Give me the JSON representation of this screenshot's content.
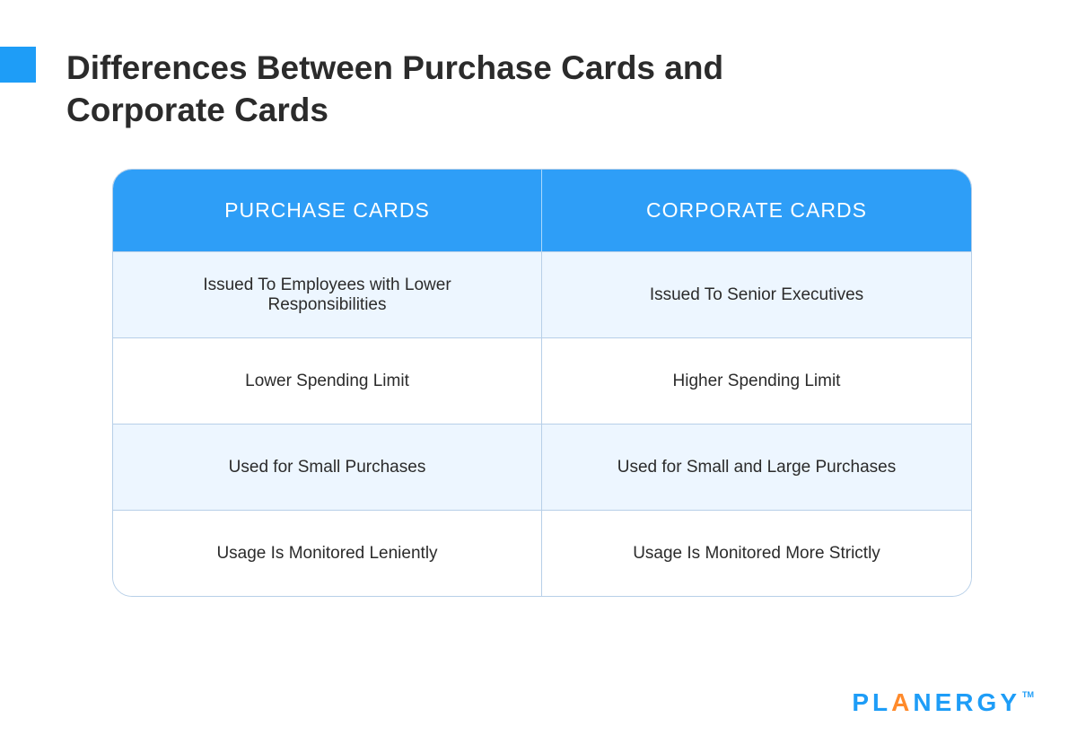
{
  "title": "Differences Between Purchase Cards and Corporate Cards",
  "accent_color": "#1e9df7",
  "table": {
    "header_bg": "#2e9ef7",
    "header_text_color": "#ffffff",
    "border_color": "#b7cfe8",
    "row_alt_bg": "#edf6ff",
    "row_bg": "#ffffff",
    "cell_text_color": "#2b2b2b",
    "columns": [
      "PURCHASE CARDS",
      "CORPORATE CARDS"
    ],
    "rows": [
      [
        "Issued To Employees with Lower Responsibilities",
        "Issued To Senior Executives"
      ],
      [
        "Lower Spending Limit",
        "Higher Spending Limit"
      ],
      [
        "Used for Small Purchases",
        "Used for Small and Large Purchases"
      ],
      [
        "Usage Is Monitored Leniently",
        "Usage Is Monitored More Strictly"
      ]
    ]
  },
  "brand": {
    "name": "PLANERGY",
    "tm": "TM",
    "color_primary": "#1e9df7",
    "color_accent": "#ff8a2b"
  }
}
